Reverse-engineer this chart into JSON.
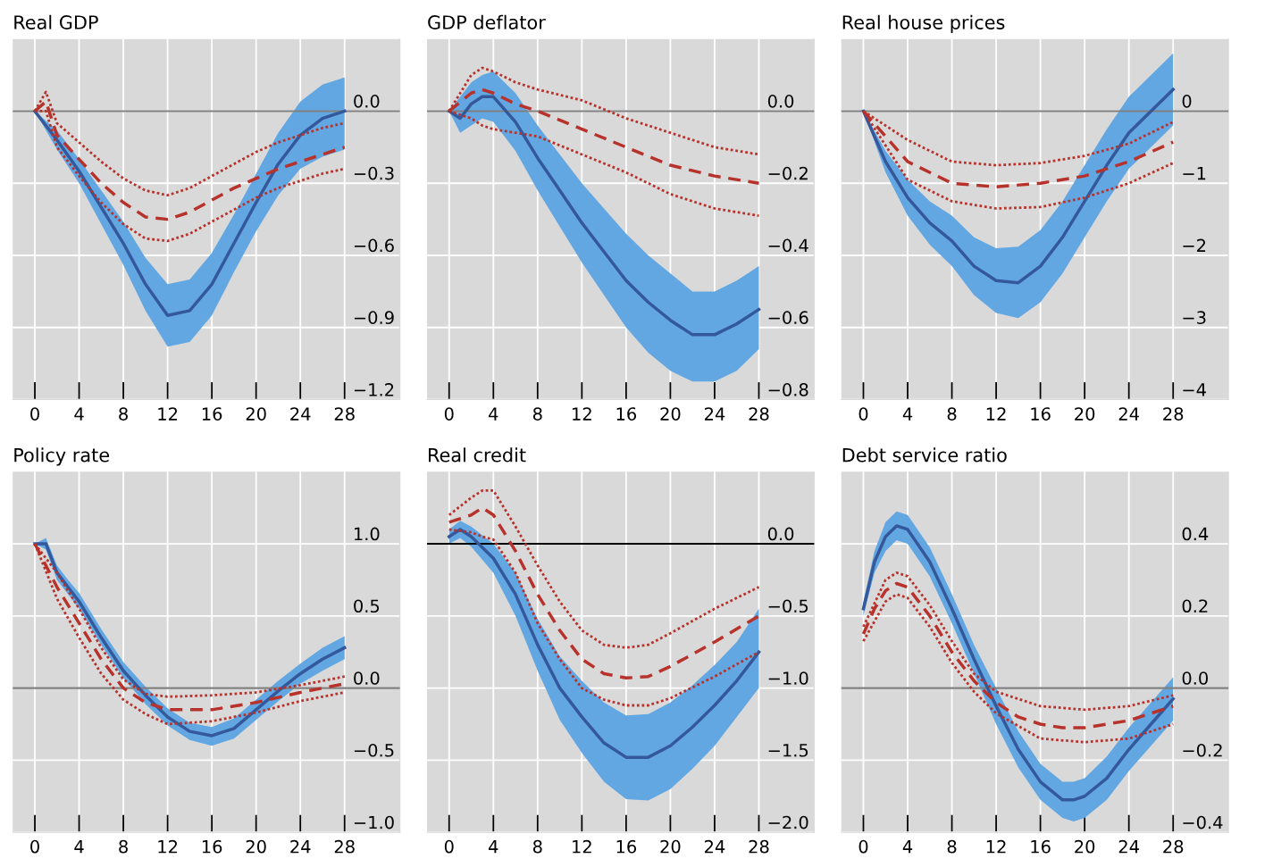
{
  "chart_data": [
    {
      "type": "line",
      "title": "Real GDP",
      "xlim": [
        -2,
        33
      ],
      "xticks": [
        0,
        4,
        8,
        12,
        16,
        20,
        24,
        28
      ],
      "ylim": [
        -1.2,
        0.3
      ],
      "yticks": [
        {
          "value": 0,
          "label": "0.0"
        },
        {
          "value": -0.3,
          "label": "−0.3"
        },
        {
          "value": -0.6,
          "label": "−0.6"
        },
        {
          "value": -0.9,
          "label": "−0.9"
        },
        {
          "value": -1.2,
          "label": "−1.2"
        }
      ],
      "grid": true,
      "ref_lines": [
        {
          "axis": "y",
          "value": 0,
          "color": "#808080"
        }
      ],
      "series": [
        {
          "color": "#34589a",
          "x": [
            0,
            2,
            4,
            6,
            8,
            10,
            12,
            14,
            16,
            18,
            20,
            22,
            24,
            26,
            28
          ],
          "values": [
            0,
            -0.12,
            -0.25,
            -0.4,
            -0.55,
            -0.72,
            -0.85,
            -0.83,
            -0.72,
            -0.55,
            -0.38,
            -0.22,
            -0.1,
            -0.03,
            0.0
          ],
          "lower": [
            0,
            -0.16,
            -0.3,
            -0.47,
            -0.64,
            -0.83,
            -0.98,
            -0.96,
            -0.85,
            -0.67,
            -0.5,
            -0.35,
            -0.24,
            -0.19,
            -0.16
          ],
          "upper": [
            0,
            -0.08,
            -0.2,
            -0.33,
            -0.46,
            -0.61,
            -0.72,
            -0.7,
            -0.59,
            -0.43,
            -0.26,
            -0.09,
            0.04,
            0.11,
            0.14
          ]
        },
        {
          "color": "#b8322c",
          "line_style": "dashed",
          "x": [
            0,
            1,
            2,
            4,
            6,
            8,
            10,
            12,
            14,
            16,
            18,
            20,
            22,
            24,
            26,
            28
          ],
          "values": [
            0,
            0.04,
            -0.1,
            -0.2,
            -0.3,
            -0.38,
            -0.44,
            -0.45,
            -0.42,
            -0.37,
            -0.32,
            -0.28,
            -0.24,
            -0.21,
            -0.18,
            -0.15
          ]
        },
        {
          "color": "#b8322c",
          "line_style": "dotted",
          "x": [
            0,
            1,
            2,
            4,
            6,
            8,
            10,
            12,
            14,
            16,
            18,
            20,
            22,
            24,
            26,
            28
          ],
          "values": [
            0,
            0.08,
            -0.05,
            -0.13,
            -0.21,
            -0.28,
            -0.33,
            -0.35,
            -0.32,
            -0.27,
            -0.22,
            -0.17,
            -0.13,
            -0.1,
            -0.07,
            -0.05
          ]
        },
        {
          "color": "#b8322c",
          "line_style": "dotted",
          "x": [
            0,
            1,
            2,
            4,
            6,
            8,
            10,
            12,
            14,
            16,
            18,
            20,
            22,
            24,
            26,
            28
          ],
          "values": [
            0,
            0.0,
            -0.15,
            -0.27,
            -0.38,
            -0.47,
            -0.53,
            -0.54,
            -0.51,
            -0.46,
            -0.41,
            -0.36,
            -0.32,
            -0.29,
            -0.26,
            -0.24
          ]
        }
      ]
    },
    {
      "type": "line",
      "title": "GDP deflator",
      "xlim": [
        -2,
        33
      ],
      "xticks": [
        0,
        4,
        8,
        12,
        16,
        20,
        24,
        28
      ],
      "ylim": [
        -0.8,
        0.2
      ],
      "yticks": [
        {
          "value": 0,
          "label": "0.0"
        },
        {
          "value": -0.2,
          "label": "−0.2"
        },
        {
          "value": -0.4,
          "label": "−0.4"
        },
        {
          "value": -0.6,
          "label": "−0.6"
        },
        {
          "value": -0.8,
          "label": "−0.8"
        }
      ],
      "grid": true,
      "ref_lines": [
        {
          "axis": "y",
          "value": 0,
          "color": "#808080"
        }
      ],
      "series": [
        {
          "color": "#34589a",
          "x": [
            0,
            1,
            2,
            3,
            4,
            6,
            8,
            10,
            12,
            14,
            16,
            18,
            20,
            22,
            24,
            26,
            28
          ],
          "values": [
            0,
            -0.02,
            0.02,
            0.04,
            0.04,
            -0.03,
            -0.13,
            -0.22,
            -0.31,
            -0.39,
            -0.47,
            -0.53,
            -0.58,
            -0.62,
            -0.62,
            -0.59,
            -0.55
          ],
          "lower": [
            0,
            -0.06,
            -0.04,
            -0.02,
            -0.03,
            -0.11,
            -0.22,
            -0.32,
            -0.42,
            -0.51,
            -0.6,
            -0.67,
            -0.72,
            -0.75,
            -0.75,
            -0.72,
            -0.66
          ],
          "upper": [
            0,
            0.04,
            0.08,
            0.1,
            0.11,
            0.05,
            -0.04,
            -0.12,
            -0.2,
            -0.27,
            -0.34,
            -0.4,
            -0.45,
            -0.5,
            -0.5,
            -0.47,
            -0.43
          ]
        },
        {
          "color": "#b8322c",
          "line_style": "dashed",
          "x": [
            0,
            2,
            3,
            4,
            6,
            8,
            12,
            16,
            20,
            24,
            28
          ],
          "values": [
            0,
            0.05,
            0.06,
            0.05,
            0.02,
            0.0,
            -0.05,
            -0.1,
            -0.15,
            -0.18,
            -0.2
          ]
        },
        {
          "color": "#b8322c",
          "line_style": "dotted",
          "x": [
            0,
            2,
            3,
            4,
            6,
            8,
            12,
            16,
            20,
            24,
            28
          ],
          "values": [
            0,
            0.1,
            0.12,
            0.11,
            0.08,
            0.06,
            0.03,
            -0.02,
            -0.06,
            -0.1,
            -0.12
          ]
        },
        {
          "color": "#b8322c",
          "line_style": "dotted",
          "x": [
            0,
            2,
            3,
            4,
            6,
            8,
            12,
            16,
            20,
            24,
            28
          ],
          "values": [
            0,
            -0.02,
            -0.04,
            -0.05,
            -0.06,
            -0.07,
            -0.12,
            -0.17,
            -0.23,
            -0.27,
            -0.29
          ]
        }
      ]
    },
    {
      "type": "line",
      "title": "Real house prices",
      "xlim": [
        -2,
        33
      ],
      "xticks": [
        0,
        4,
        8,
        12,
        16,
        20,
        24,
        28
      ],
      "ylim": [
        -4,
        1
      ],
      "yticks": [
        0,
        {
          "value": -1,
          "label": "−1"
        },
        {
          "value": -2,
          "label": "−2"
        },
        {
          "value": -3,
          "label": "−3"
        },
        {
          "value": -4,
          "label": "−4"
        }
      ],
      "grid": true,
      "ref_lines": [
        {
          "axis": "y",
          "value": 0,
          "color": "#808080"
        }
      ],
      "series": [
        {
          "color": "#34589a",
          "x": [
            0,
            2,
            4,
            6,
            8,
            10,
            12,
            14,
            16,
            18,
            20,
            22,
            24,
            26,
            28
          ],
          "values": [
            0,
            -0.7,
            -1.2,
            -1.55,
            -1.8,
            -2.15,
            -2.35,
            -2.38,
            -2.15,
            -1.75,
            -1.25,
            -0.75,
            -0.3,
            0.0,
            0.3
          ],
          "lower": [
            0,
            -0.85,
            -1.45,
            -1.85,
            -2.15,
            -2.55,
            -2.8,
            -2.87,
            -2.65,
            -2.25,
            -1.75,
            -1.25,
            -0.8,
            -0.5,
            -0.2
          ],
          "upper": [
            0,
            -0.55,
            -0.95,
            -1.25,
            -1.45,
            -1.75,
            -1.9,
            -1.88,
            -1.65,
            -1.25,
            -0.75,
            -0.25,
            0.2,
            0.5,
            0.8
          ]
        },
        {
          "color": "#b8322c",
          "line_style": "dashed",
          "x": [
            0,
            4,
            8,
            12,
            16,
            20,
            24,
            28
          ],
          "values": [
            0,
            -0.7,
            -1.0,
            -1.05,
            -1.0,
            -0.9,
            -0.7,
            -0.43
          ]
        },
        {
          "color": "#b8322c",
          "line_style": "dotted",
          "x": [
            0,
            4,
            8,
            12,
            16,
            20,
            24,
            28
          ],
          "values": [
            0,
            -0.4,
            -0.7,
            -0.75,
            -0.72,
            -0.62,
            -0.45,
            -0.15
          ]
        },
        {
          "color": "#b8322c",
          "line_style": "dotted",
          "x": [
            0,
            4,
            8,
            12,
            16,
            20,
            24,
            28
          ],
          "values": [
            0,
            -0.95,
            -1.25,
            -1.35,
            -1.33,
            -1.2,
            -1.0,
            -0.72
          ]
        }
      ]
    },
    {
      "type": "line",
      "title": "Policy rate",
      "xlim": [
        -2,
        33
      ],
      "xticks": [
        0,
        4,
        8,
        12,
        16,
        20,
        24,
        28
      ],
      "ylim": [
        -1.0,
        1.5
      ],
      "yticks": [
        {
          "value": 1,
          "label": "1.0"
        },
        0.5,
        {
          "value": 0,
          "label": "0.0"
        },
        {
          "value": -0.5,
          "label": "−0.5"
        },
        {
          "value": -1.0,
          "label": "−1.0"
        }
      ],
      "grid": true,
      "ref_lines": [
        {
          "axis": "y",
          "value": 0,
          "color": "#808080"
        }
      ],
      "series": [
        {
          "color": "#34589a",
          "x": [
            0,
            1,
            2,
            3,
            4,
            6,
            8,
            10,
            12,
            14,
            16,
            18,
            20,
            22,
            24,
            26,
            28
          ],
          "values": [
            1.0,
            1.0,
            0.8,
            0.7,
            0.6,
            0.35,
            0.12,
            -0.05,
            -0.2,
            -0.3,
            -0.33,
            -0.28,
            -0.15,
            -0.02,
            0.1,
            0.2,
            0.28
          ],
          "lower": [
            1.0,
            0.96,
            0.75,
            0.65,
            0.55,
            0.3,
            0.07,
            -0.11,
            -0.26,
            -0.36,
            -0.4,
            -0.35,
            -0.22,
            -0.09,
            0.03,
            0.12,
            0.2
          ],
          "upper": [
            1.0,
            1.04,
            0.85,
            0.75,
            0.66,
            0.41,
            0.18,
            0.01,
            -0.14,
            -0.24,
            -0.27,
            -0.21,
            -0.08,
            0.05,
            0.17,
            0.28,
            0.36
          ]
        },
        {
          "color": "#b8322c",
          "line_style": "dashed",
          "x": [
            0,
            2,
            4,
            6,
            8,
            10,
            12,
            16,
            20,
            24,
            28
          ],
          "values": [
            1.0,
            0.7,
            0.45,
            0.2,
            0.0,
            -0.1,
            -0.15,
            -0.15,
            -0.1,
            -0.03,
            0.03
          ]
        },
        {
          "color": "#b8322c",
          "line_style": "dotted",
          "x": [
            0,
            2,
            4,
            6,
            8,
            10,
            12,
            16,
            20,
            24,
            28
          ],
          "values": [
            1.0,
            0.8,
            0.55,
            0.28,
            0.06,
            -0.04,
            -0.06,
            -0.05,
            -0.03,
            0.02,
            0.08
          ]
        },
        {
          "color": "#b8322c",
          "line_style": "dotted",
          "x": [
            0,
            2,
            4,
            6,
            8,
            10,
            12,
            16,
            20,
            24,
            28
          ],
          "values": [
            1.0,
            0.62,
            0.35,
            0.1,
            -0.08,
            -0.18,
            -0.25,
            -0.23,
            -0.17,
            -0.09,
            -0.03
          ]
        }
      ]
    },
    {
      "type": "line",
      "title": "Real credit",
      "xlim": [
        -2,
        33
      ],
      "xticks": [
        0,
        4,
        8,
        12,
        16,
        20,
        24,
        28
      ],
      "ylim": [
        -2.0,
        0.5
      ],
      "yticks": [
        {
          "value": 0,
          "label": "0.0"
        },
        {
          "value": -0.5,
          "label": "−0.5"
        },
        {
          "value": -1.0,
          "label": "−1.0"
        },
        {
          "value": -1.5,
          "label": "−1.5"
        },
        {
          "value": -2.0,
          "label": "−2.0"
        }
      ],
      "grid": true,
      "ref_lines": [
        {
          "axis": "y",
          "value": 0,
          "color": "#000000"
        }
      ],
      "series": [
        {
          "color": "#34589a",
          "x": [
            0,
            1,
            2,
            4,
            6,
            8,
            10,
            12,
            14,
            16,
            18,
            20,
            22,
            24,
            26,
            28
          ],
          "values": [
            0.05,
            0.1,
            0.05,
            -0.1,
            -0.35,
            -0.7,
            -1.0,
            -1.2,
            -1.38,
            -1.48,
            -1.48,
            -1.4,
            -1.27,
            -1.12,
            -0.95,
            -0.75
          ],
          "lower": [
            0.0,
            0.04,
            -0.02,
            -0.2,
            -0.5,
            -0.88,
            -1.22,
            -1.45,
            -1.65,
            -1.77,
            -1.78,
            -1.7,
            -1.56,
            -1.4,
            -1.2,
            -1.0
          ],
          "upper": [
            0.1,
            0.16,
            0.12,
            0.0,
            -0.2,
            -0.52,
            -0.78,
            -0.95,
            -1.1,
            -1.19,
            -1.18,
            -1.1,
            -0.98,
            -0.84,
            -0.68,
            -0.45
          ]
        },
        {
          "color": "#b8322c",
          "line_style": "dashed",
          "x": [
            0,
            2,
            3,
            4,
            6,
            8,
            10,
            12,
            14,
            16,
            18,
            20,
            24,
            28
          ],
          "values": [
            0.15,
            0.2,
            0.25,
            0.2,
            -0.05,
            -0.35,
            -0.6,
            -0.8,
            -0.9,
            -0.93,
            -0.92,
            -0.85,
            -0.68,
            -0.5
          ]
        },
        {
          "color": "#b8322c",
          "line_style": "dotted",
          "x": [
            0,
            2,
            3,
            4,
            6,
            8,
            10,
            12,
            14,
            16,
            18,
            20,
            24,
            28
          ],
          "values": [
            0.2,
            0.32,
            0.37,
            0.37,
            0.12,
            -0.15,
            -0.4,
            -0.6,
            -0.7,
            -0.72,
            -0.7,
            -0.62,
            -0.45,
            -0.3
          ]
        },
        {
          "color": "#b8322c",
          "line_style": "dotted",
          "x": [
            0,
            2,
            3,
            4,
            6,
            8,
            10,
            12,
            14,
            16,
            18,
            20,
            24,
            28
          ],
          "values": [
            0.1,
            0.08,
            0.05,
            0.03,
            -0.2,
            -0.55,
            -0.8,
            -1.0,
            -1.08,
            -1.12,
            -1.12,
            -1.07,
            -0.92,
            -0.75
          ]
        }
      ]
    },
    {
      "type": "line",
      "title": "Debt service ratio",
      "xlim": [
        -2,
        33
      ],
      "xticks": [
        0,
        4,
        8,
        12,
        16,
        20,
        24,
        28
      ],
      "ylim": [
        -0.4,
        0.6
      ],
      "yticks": [
        0.4,
        0.2,
        {
          "value": 0,
          "label": "0.0"
        },
        {
          "value": -0.2,
          "label": "−0.2"
        },
        {
          "value": -0.4,
          "label": "−0.4"
        }
      ],
      "grid": true,
      "ref_lines": [
        {
          "axis": "y",
          "value": 0,
          "color": "#808080"
        }
      ],
      "series": [
        {
          "color": "#34589a",
          "x": [
            0,
            1,
            2,
            3,
            4,
            6,
            8,
            10,
            12,
            14,
            16,
            18,
            19,
            20,
            22,
            24,
            26,
            28
          ],
          "values": [
            0.22,
            0.35,
            0.42,
            0.45,
            0.44,
            0.35,
            0.22,
            0.08,
            -0.05,
            -0.17,
            -0.26,
            -0.31,
            -0.31,
            -0.3,
            -0.25,
            -0.17,
            -0.1,
            -0.03
          ],
          "lower": [
            0.2,
            0.32,
            0.38,
            0.41,
            0.4,
            0.31,
            0.18,
            0.04,
            -0.1,
            -0.22,
            -0.31,
            -0.36,
            -0.37,
            -0.36,
            -0.31,
            -0.23,
            -0.16,
            -0.09
          ],
          "upper": [
            0.24,
            0.38,
            0.46,
            0.49,
            0.48,
            0.39,
            0.26,
            0.12,
            0.0,
            -0.12,
            -0.21,
            -0.26,
            -0.26,
            -0.25,
            -0.19,
            -0.11,
            -0.04,
            0.03
          ]
        },
        {
          "color": "#b8322c",
          "line_style": "dashed",
          "x": [
            0,
            1,
            2,
            3,
            4,
            6,
            8,
            10,
            12,
            14,
            16,
            18,
            20,
            22,
            24,
            26,
            28
          ],
          "values": [
            0.15,
            0.22,
            0.27,
            0.29,
            0.28,
            0.2,
            0.1,
            0.02,
            -0.04,
            -0.08,
            -0.1,
            -0.11,
            -0.11,
            -0.1,
            -0.09,
            -0.07,
            -0.05
          ]
        },
        {
          "color": "#b8322c",
          "line_style": "dotted",
          "x": [
            0,
            2,
            3,
            4,
            6,
            8,
            10,
            12,
            16,
            20,
            24,
            28
          ],
          "values": [
            0.17,
            0.3,
            0.32,
            0.31,
            0.23,
            0.13,
            0.04,
            -0.01,
            -0.05,
            -0.06,
            -0.05,
            -0.02
          ]
        },
        {
          "color": "#b8322c",
          "line_style": "dotted",
          "x": [
            0,
            2,
            3,
            4,
            6,
            8,
            10,
            12,
            16,
            20,
            24,
            28
          ],
          "values": [
            0.13,
            0.24,
            0.26,
            0.25,
            0.17,
            0.07,
            -0.01,
            -0.07,
            -0.14,
            -0.15,
            -0.14,
            -0.1
          ]
        }
      ]
    }
  ]
}
